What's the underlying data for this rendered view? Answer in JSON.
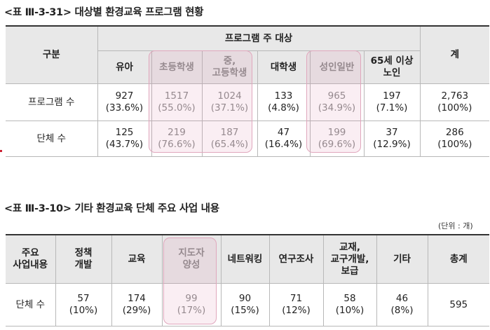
{
  "table1": {
    "caption": "<표 Ⅲ-3-31> 대상별 환경교육 프로그램 현황",
    "header_main": "프로그램 주 대상",
    "row_header": "구분",
    "total_header": "계",
    "columns": [
      {
        "l1": "유아",
        "l2": ""
      },
      {
        "l1": "초등학생",
        "l2": ""
      },
      {
        "l1": "중,",
        "l2": "고등학생"
      },
      {
        "l1": "대학생",
        "l2": ""
      },
      {
        "l1": "성인일반",
        "l2": ""
      },
      {
        "l1": "65세 이상",
        "l2": "노인"
      }
    ],
    "rows": [
      {
        "label": "프로그램 수",
        "cells": [
          {
            "n": "927",
            "p": "(33.6%)"
          },
          {
            "n": "1517",
            "p": "(55.0%)"
          },
          {
            "n": "1024",
            "p": "(37.1%)"
          },
          {
            "n": "133",
            "p": "(4.8%)"
          },
          {
            "n": "965",
            "p": "(34.9%)"
          },
          {
            "n": "197",
            "p": "(7.1%)"
          },
          {
            "n": "2,763",
            "p": "(100%)"
          }
        ]
      },
      {
        "label": "단체 수",
        "cells": [
          {
            "n": "125",
            "p": "(43.7%)"
          },
          {
            "n": "219",
            "p": "(76.6%)"
          },
          {
            "n": "187",
            "p": "(65.4%)"
          },
          {
            "n": "47",
            "p": "(16.4%)"
          },
          {
            "n": "199",
            "p": "(69.6%)"
          },
          {
            "n": "37",
            "p": "(12.9%)"
          },
          {
            "n": "286",
            "p": "(100%)"
          }
        ]
      }
    ]
  },
  "table2": {
    "caption": "<표 Ⅲ-3-10> 기타 환경교육 단체 주요 사업 내용",
    "unit": "(단위 : 개)",
    "headers": [
      {
        "l1": "주요",
        "l2": "사업내용",
        "l3": ""
      },
      {
        "l1": "정책",
        "l2": "개발",
        "l3": ""
      },
      {
        "l1": "교육",
        "l2": "",
        "l3": ""
      },
      {
        "l1": "지도자",
        "l2": "양성",
        "l3": ""
      },
      {
        "l1": "네트워킹",
        "l2": "",
        "l3": ""
      },
      {
        "l1": "연구조사",
        "l2": "",
        "l3": ""
      },
      {
        "l1": "교재,",
        "l2": "교구개발,",
        "l3": "보급"
      },
      {
        "l1": "기타",
        "l2": "",
        "l3": ""
      },
      {
        "l1": "총계",
        "l2": "",
        "l3": ""
      }
    ],
    "row": {
      "label": "단체 수",
      "cells": [
        {
          "n": "57",
          "p": "(10%)"
        },
        {
          "n": "174",
          "p": "(29%)"
        },
        {
          "n": "99",
          "p": "(17%)"
        },
        {
          "n": "90",
          "p": "(15%)"
        },
        {
          "n": "71",
          "p": "(12%)"
        },
        {
          "n": "58",
          "p": "(10%)"
        },
        {
          "n": "46",
          "p": "(8%)"
        },
        {
          "n": "595",
          "p": ""
        }
      ]
    }
  },
  "highlight_color": "#e0a7bd"
}
